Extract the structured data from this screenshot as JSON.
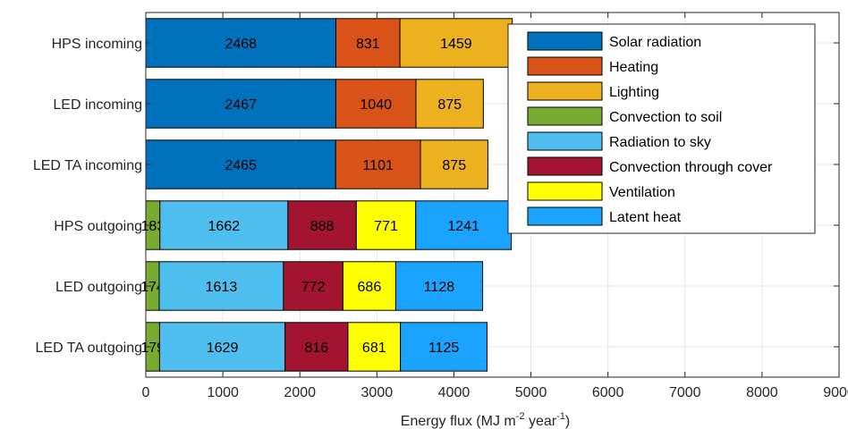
{
  "chart_data": {
    "type": "bar",
    "orientation": "horizontal",
    "stacked": true,
    "xlabel": "Energy flux (MJ m-2 year-1)",
    "xlabel_parts": {
      "base": "Energy flux (MJ m",
      "exp1": "-2",
      "mid": " year",
      "exp2": "-1",
      "end": ")"
    },
    "xlim": [
      0,
      9000
    ],
    "xticks": [
      "0",
      "1000",
      "2000",
      "3000",
      "4000",
      "5000",
      "6000",
      "7000",
      "8000",
      "9000"
    ],
    "grid": true,
    "legend_position": "top-right",
    "categories": [
      "HPS incoming",
      "LED incoming",
      "LED TA incoming",
      "HPS outgoing",
      "LED outgoing",
      "LED TA outgoing"
    ],
    "series": [
      {
        "name": "Solar radiation",
        "color": "#0072BD",
        "values": [
          2468,
          2467,
          2465,
          0,
          0,
          0
        ]
      },
      {
        "name": "Heating",
        "color": "#D95319",
        "values": [
          831,
          1040,
          1101,
          0,
          0,
          0
        ]
      },
      {
        "name": "Lighting",
        "color": "#EDB120",
        "values": [
          1459,
          875,
          875,
          0,
          0,
          0
        ]
      },
      {
        "name": "Convection to soil",
        "color": "#77AC30",
        "values": [
          0,
          0,
          0,
          183,
          174,
          179
        ]
      },
      {
        "name": "Radiation to sky",
        "color": "#4DBEEE",
        "values": [
          0,
          0,
          0,
          1662,
          1613,
          1629
        ]
      },
      {
        "name": "Convection through cover",
        "color": "#A2142F",
        "values": [
          0,
          0,
          0,
          888,
          772,
          816
        ]
      },
      {
        "name": "Ventilation",
        "color": "#FFFF00",
        "values": [
          0,
          0,
          0,
          771,
          686,
          681
        ]
      },
      {
        "name": "Latent heat",
        "color": "#1AA3FF",
        "values": [
          0,
          0,
          0,
          1241,
          1128,
          1125
        ]
      }
    ]
  }
}
